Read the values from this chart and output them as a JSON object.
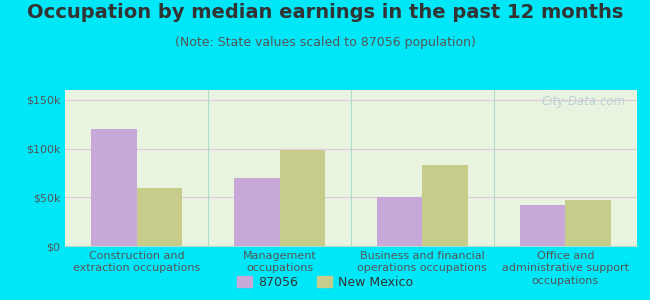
{
  "title": "Occupation by median earnings in the past 12 months",
  "subtitle": "(Note: State values scaled to 87056 population)",
  "categories": [
    "Construction and\nextraction occupations",
    "Management\noccupations",
    "Business and financial\noperations occupations",
    "Office and\nadministrative support\noccupations"
  ],
  "values_87056": [
    120000,
    70000,
    50000,
    42000
  ],
  "values_nm": [
    60000,
    98000,
    83000,
    47000
  ],
  "color_87056": "#c8a8d8",
  "color_nm": "#c8cc8a",
  "bar_width": 0.32,
  "ylim": [
    0,
    160000
  ],
  "yticks": [
    0,
    50000,
    100000,
    150000
  ],
  "ytick_labels": [
    "$0",
    "$50k",
    "$100k",
    "$150k"
  ],
  "legend_87056": "87056",
  "legend_nm": "New Mexico",
  "bg_outer": "#00e8f8",
  "bg_chart_left": "#d8eec8",
  "bg_chart_right": "#f0f8f0",
  "watermark": "City-Data.com",
  "title_fontsize": 14,
  "subtitle_fontsize": 9,
  "axis_fontsize": 8,
  "legend_fontsize": 9,
  "grid_color": "#e0c8d8",
  "separator_color": "#aaddcc",
  "text_color": "#333333",
  "tick_color": "#555555"
}
